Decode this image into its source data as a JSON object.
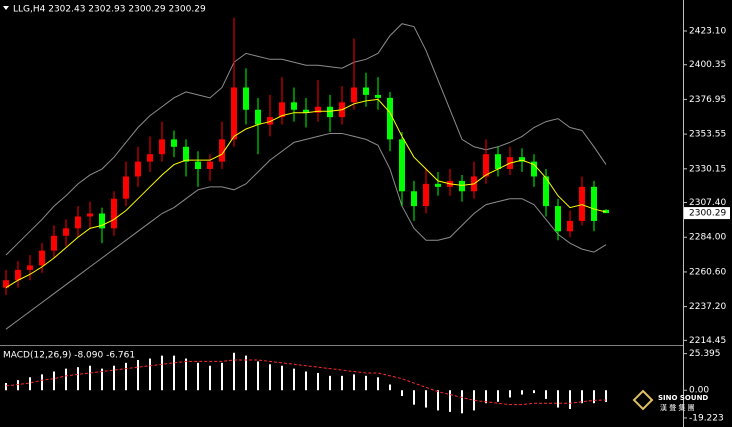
{
  "chart_data": {
    "type": "candlestick",
    "title": "LLG,H4  2302.43 2302.93 2300.29 2300.29",
    "indicator_label": "MACD(12,26,9) -8.090 -6.761",
    "watermark": {
      "name": "SINO SOUND",
      "subtitle": "漢 聲 集 團"
    },
    "up_color": "#ff0000",
    "down_color": "#00ff00",
    "ylim": [
      2212,
      2444
    ],
    "yticks": [
      {
        "value": 2423.1,
        "label": "2423.10"
      },
      2400.35,
      2376.95,
      2353.55,
      2330.15,
      {
        "value": 2307.4,
        "label": "2307.40"
      },
      {
        "value": 2284,
        "label": "2284.00"
      },
      {
        "value": 2260.6,
        "label": "2260.60"
      },
      {
        "value": 2237.2,
        "label": "2237.20"
      },
      2214.45
    ],
    "candles": [
      [
        2250,
        2262,
        2245,
        2255
      ],
      [
        2255,
        2268,
        2250,
        2262
      ],
      [
        2262,
        2272,
        2255,
        2265
      ],
      [
        2265,
        2280,
        2260,
        2275
      ],
      [
        2275,
        2292,
        2270,
        2285
      ],
      [
        2285,
        2296,
        2278,
        2290
      ],
      [
        2290,
        2305,
        2284,
        2298
      ],
      [
        2298,
        2308,
        2290,
        2300
      ],
      [
        2300,
        2304,
        2280,
        2290
      ],
      [
        2290,
        2315,
        2285,
        2310
      ],
      [
        2310,
        2335,
        2305,
        2325
      ],
      [
        2325,
        2345,
        2318,
        2335
      ],
      [
        2335,
        2352,
        2328,
        2340
      ],
      [
        2340,
        2362,
        2335,
        2350
      ],
      [
        2350,
        2356,
        2338,
        2345
      ],
      [
        2345,
        2350,
        2325,
        2335
      ],
      [
        2335,
        2342,
        2318,
        2330
      ],
      [
        2330,
        2340,
        2322,
        2335
      ],
      [
        2335,
        2362,
        2330,
        2350
      ],
      [
        2350,
        2432,
        2345,
        2385
      ],
      [
        2385,
        2398,
        2360,
        2370
      ],
      [
        2370,
        2378,
        2340,
        2360
      ],
      [
        2360,
        2380,
        2352,
        2365
      ],
      [
        2365,
        2392,
        2360,
        2375
      ],
      [
        2375,
        2385,
        2362,
        2370
      ],
      [
        2370,
        2378,
        2358,
        2368
      ],
      [
        2368,
        2390,
        2362,
        2372
      ],
      [
        2372,
        2380,
        2355,
        2365
      ],
      [
        2365,
        2386,
        2360,
        2375
      ],
      [
        2375,
        2418,
        2370,
        2385
      ],
      [
        2385,
        2395,
        2372,
        2380
      ],
      [
        2380,
        2392,
        2370,
        2378
      ],
      [
        2378,
        2382,
        2342,
        2350
      ],
      [
        2350,
        2355,
        2305,
        2315
      ],
      [
        2315,
        2322,
        2295,
        2305
      ],
      [
        2305,
        2330,
        2300,
        2320
      ],
      [
        2320,
        2328,
        2312,
        2318
      ],
      [
        2318,
        2330,
        2312,
        2322
      ],
      [
        2322,
        2326,
        2308,
        2315
      ],
      [
        2315,
        2335,
        2310,
        2325
      ],
      [
        2325,
        2350,
        2320,
        2340
      ],
      [
        2340,
        2345,
        2325,
        2330
      ],
      [
        2330,
        2345,
        2326,
        2338
      ],
      [
        2338,
        2344,
        2328,
        2335
      ],
      [
        2335,
        2340,
        2318,
        2325
      ],
      [
        2325,
        2330,
        2298,
        2305
      ],
      [
        2305,
        2310,
        2282,
        2288
      ],
      [
        2288,
        2302,
        2284,
        2295
      ],
      [
        2295,
        2325,
        2292,
        2318
      ],
      [
        2318,
        2322,
        2288,
        2295
      ],
      [
        2302.43,
        2302.93,
        2300.29,
        2300.29
      ]
    ],
    "ma": {
      "color": "#ffff00",
      "values": [
        2250,
        2255,
        2259,
        2264,
        2270,
        2277,
        2284,
        2290,
        2292,
        2296,
        2302,
        2310,
        2318,
        2326,
        2333,
        2336,
        2336,
        2336,
        2340,
        2352,
        2357,
        2360,
        2362,
        2366,
        2368,
        2368,
        2369,
        2369,
        2370,
        2374,
        2376,
        2377,
        2368,
        2352,
        2338,
        2330,
        2322,
        2320,
        2319,
        2320,
        2326,
        2330,
        2334,
        2336,
        2333,
        2324,
        2312,
        2304,
        2306,
        2303,
        2301
      ]
    },
    "bb_upper": {
      "color": "#8c8c8c",
      "values": [
        2272,
        2280,
        2288,
        2296,
        2305,
        2312,
        2320,
        2326,
        2330,
        2338,
        2348,
        2358,
        2366,
        2372,
        2378,
        2382,
        2380,
        2378,
        2385,
        2402,
        2408,
        2406,
        2404,
        2404,
        2402,
        2400,
        2400,
        2399,
        2398,
        2402,
        2404,
        2408,
        2420,
        2428,
        2426,
        2410,
        2390,
        2370,
        2350,
        2345,
        2343,
        2345,
        2348,
        2352,
        2358,
        2362,
        2364,
        2358,
        2356,
        2345,
        2333
      ]
    },
    "bb_lower": {
      "color": "#8c8c8c",
      "values": [
        2222,
        2228,
        2234,
        2240,
        2246,
        2252,
        2258,
        2264,
        2270,
        2276,
        2282,
        2288,
        2294,
        2300,
        2304,
        2310,
        2316,
        2318,
        2318,
        2316,
        2320,
        2328,
        2336,
        2342,
        2348,
        2350,
        2352,
        2354,
        2354,
        2352,
        2350,
        2346,
        2330,
        2305,
        2290,
        2282,
        2282,
        2284,
        2292,
        2300,
        2306,
        2308,
        2310,
        2310,
        2306,
        2296,
        2286,
        2280,
        2276,
        2274,
        2279
      ]
    },
    "macd": {
      "ylim": [
        -25.5,
        30
      ],
      "yticks": [
        25.395,
        {
          "value": 0,
          "label": "0.00"
        },
        -19.223
      ],
      "hist_color": "#ffffff",
      "signal_color": "#ff2a2a",
      "histogram": [
        5,
        7,
        9,
        11,
        13,
        15,
        16,
        17,
        15,
        17,
        19,
        21,
        22,
        24,
        24,
        22,
        19,
        17,
        19,
        26,
        24,
        20,
        18,
        17,
        15,
        13,
        12,
        10,
        10,
        11,
        10,
        9,
        4,
        -4,
        -10,
        -12,
        -14,
        -15,
        -16,
        -14,
        -9,
        -8,
        -5,
        -3,
        -2,
        -6,
        -12,
        -13,
        -9,
        -9,
        -8.09
      ],
      "signal": [
        3,
        4,
        5,
        7,
        8,
        10,
        11,
        12,
        13,
        14,
        15,
        16,
        17,
        18,
        19,
        20,
        20,
        20,
        20,
        21,
        21,
        21,
        20,
        19,
        18,
        17,
        16,
        15,
        14,
        13,
        12,
        12,
        10,
        8,
        5,
        2,
        -1,
        -3,
        -5,
        -7,
        -8,
        -9,
        -10,
        -10,
        -9,
        -9,
        -9,
        -9,
        -8,
        -7,
        -6.761
      ]
    }
  }
}
